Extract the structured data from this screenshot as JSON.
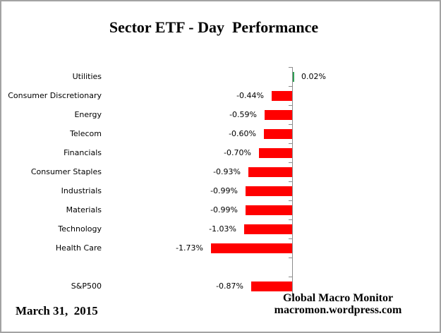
{
  "title": "Sector ETF - Day  Performance",
  "footer": {
    "date": "March 31,  2015",
    "source_line1": "Global Macro Monitor",
    "source_line2": "macromon.wordpress.com"
  },
  "chart_data": {
    "type": "bar",
    "orientation": "horizontal",
    "title": "Sector ETF - Day  Performance",
    "unit": "%",
    "categories": [
      "Utilities",
      "Consumer Discretionary",
      "Energy",
      "Telecom",
      "Financials",
      "Consumer Staples",
      "Industrials",
      "Materials",
      "Technology",
      "Health Care",
      "S&P500"
    ],
    "values": [
      0.02,
      -0.44,
      -0.59,
      -0.6,
      -0.7,
      -0.93,
      -0.99,
      -0.99,
      -1.03,
      -1.73,
      -0.87
    ],
    "value_labels": [
      "0.02%",
      "-0.44%",
      "-0.59%",
      "-0.60%",
      "-0.70%",
      "-0.93%",
      "-0.99%",
      "-0.99%",
      "-1.03%",
      "-1.73%",
      "-0.87%"
    ],
    "xlim": [
      -1.9,
      0.3
    ],
    "grid": false,
    "legend": false,
    "colors": {
      "positive_bar": "#2fa055",
      "negative_bar": "#ff0000",
      "axis": "#8c8c8c",
      "text": "#000000",
      "border": "#a3a3a3",
      "background": "#ffffff"
    },
    "notes": "blank row gap between Health Care and S&P500"
  }
}
